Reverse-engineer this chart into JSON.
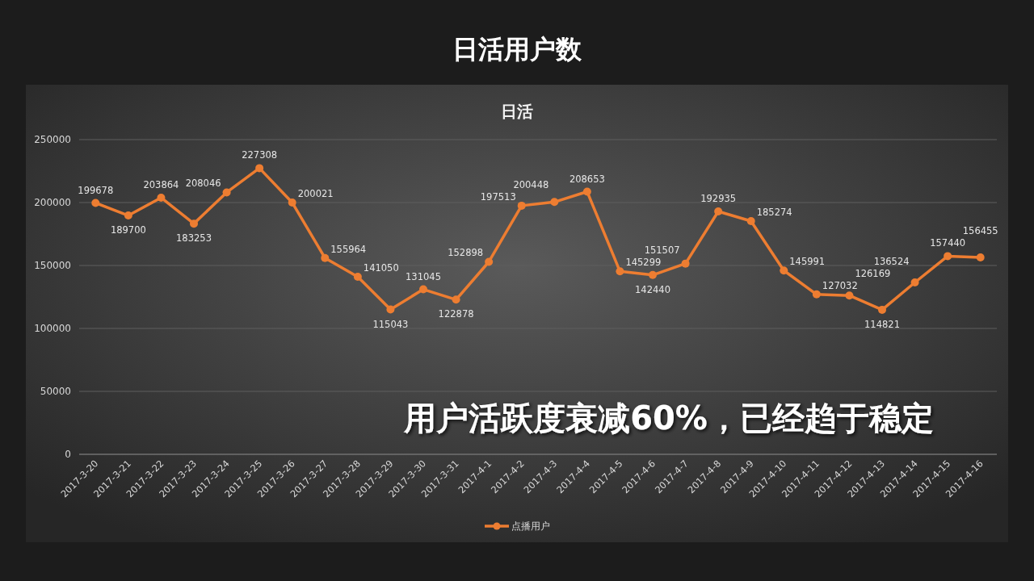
{
  "chart_data": {
    "type": "line",
    "title": "日活用户数",
    "subtitle": "日活",
    "categories": [
      "2017-3-20",
      "2017-3-21",
      "2017-3-22",
      "2017-3-23",
      "2017-3-24",
      "2017-3-25",
      "2017-3-26",
      "2017-3-27",
      "2017-3-28",
      "2017-3-29",
      "2017-3-30",
      "2017-3-31",
      "2017-4-1",
      "2017-4-2",
      "2017-4-3",
      "2017-4-4",
      "2017-4-5",
      "2017-4-6",
      "2017-4-7",
      "2017-4-8",
      "2017-4-9",
      "2017-4-10",
      "2017-4-11",
      "2017-4-12",
      "2017-4-13",
      "2017-4-14",
      "2017-4-15",
      "2017-4-16"
    ],
    "series": [
      {
        "name": "点播用户",
        "color": "#ed7d31",
        "values": [
          199678,
          189700,
          203864,
          183253,
          208046,
          227308,
          200021,
          155964,
          141050,
          115043,
          131045,
          122878,
          152898,
          197513,
          200448,
          208653,
          145299,
          142440,
          151507,
          192935,
          185274,
          145991,
          127032,
          126169,
          114821,
          136524,
          157440,
          156455
        ]
      }
    ],
    "ylim": [
      0,
      250000
    ],
    "yticks": [
      0,
      50000,
      100000,
      150000,
      200000,
      250000
    ],
    "grid": "y",
    "legend": "bottom",
    "marker": "circle",
    "line_style": "solid",
    "data_labels": true,
    "annotations": [
      "用户活跃度衰减60%，已经趋于稳定"
    ]
  }
}
